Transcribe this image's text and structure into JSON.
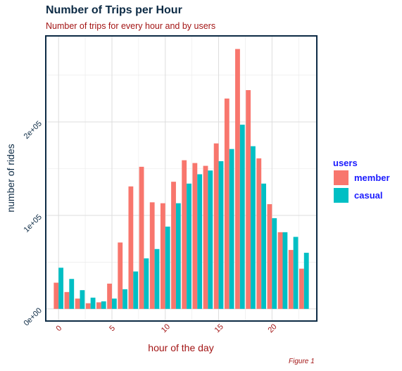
{
  "chart_data": {
    "type": "bar",
    "title": "Number of Trips per Hour",
    "subtitle": "Number of trips for every hour and by users",
    "xlabel": "hour of the day",
    "ylabel": "number of rides",
    "caption": "Figure 1",
    "x": [
      0,
      1,
      2,
      3,
      4,
      5,
      6,
      7,
      8,
      9,
      10,
      11,
      12,
      13,
      14,
      15,
      16,
      17,
      18,
      19,
      20,
      21,
      22,
      23
    ],
    "xlim": [
      -1.2,
      24.2
    ],
    "ylim": [
      -13000,
      292000
    ],
    "x_ticks": [
      0,
      5,
      10,
      15,
      20
    ],
    "x_tick_labels": [
      "0",
      "5",
      "10",
      "15",
      "20"
    ],
    "y_ticks": [
      0,
      100000,
      200000
    ],
    "y_tick_labels": [
      "0e+00",
      "1e+05",
      "2e+05"
    ],
    "grid": true,
    "legend": {
      "title": "users",
      "placement": "right"
    },
    "series": [
      {
        "name": "member",
        "color": "#f8766d",
        "values": [
          28000,
          18000,
          11000,
          6000,
          7000,
          27000,
          71000,
          131000,
          152000,
          114000,
          113000,
          136000,
          159000,
          156000,
          153000,
          177000,
          225000,
          278000,
          234000,
          161000,
          112000,
          82000,
          63000,
          43000
        ]
      },
      {
        "name": "casual",
        "color": "#00bfc4",
        "values": [
          44000,
          32000,
          20000,
          12000,
          8000,
          11000,
          21000,
          40000,
          54000,
          64000,
          88000,
          113000,
          134000,
          144000,
          148000,
          158000,
          171000,
          197000,
          174000,
          134000,
          97000,
          82000,
          77000,
          60000
        ]
      }
    ]
  }
}
